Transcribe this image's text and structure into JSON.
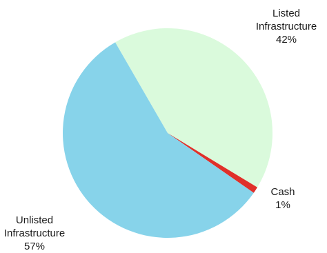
{
  "chart_data": {
    "type": "pie",
    "title": "",
    "slices": [
      {
        "label_lines": [
          "Listed",
          "Infrastructure"
        ],
        "percent_label": "42%",
        "value": 42,
        "color": "#dafadc"
      },
      {
        "label_lines": [
          "Cash"
        ],
        "percent_label": "1%",
        "value": 1,
        "color": "#e0302a"
      },
      {
        "label_lines": [
          "Unlisted",
          "Infrastructure"
        ],
        "percent_label": "57%",
        "value": 57,
        "color": "#87d3ea"
      }
    ],
    "legend": "none"
  }
}
